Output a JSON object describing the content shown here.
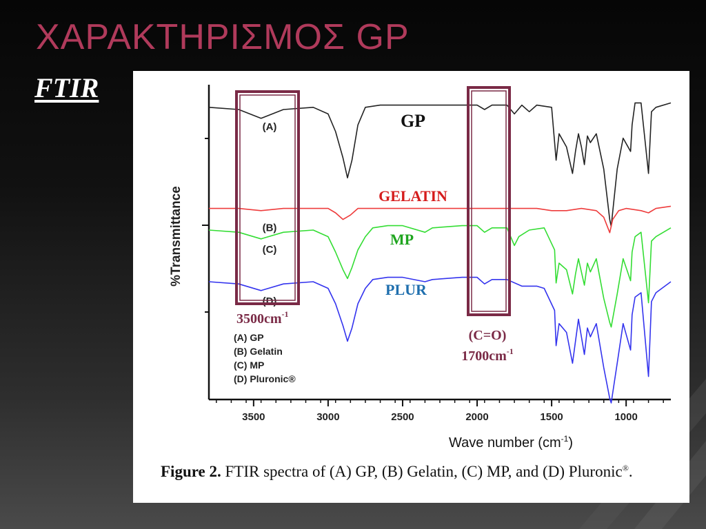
{
  "slide": {
    "title": "ΧΑΡΑΚΤΗΡΙΣΜΟΣ GP",
    "subtitle": "FTIR"
  },
  "figure": {
    "caption_bold": "Figure 2.",
    "caption_text": " FTIR spectra of (A) GP, (B) Gelatin, (C) MP, and (D) Pluronic",
    "caption_sup": "®",
    "caption_end": "."
  },
  "overlay": {
    "band_3500_label": "3500cm",
    "band_3500_sup": "-1",
    "band_1700_label_top": "(C=O)",
    "band_1700_label": "1700cm",
    "band_1700_sup": "-1",
    "box_color": "#7a2a46"
  },
  "chart_data": {
    "type": "line",
    "xlabel": "Wave number (cm",
    "xlabel_sup": "-1",
    "xlabel_end": ")",
    "ylabel": "%Transmittance",
    "xlim": [
      3800,
      700
    ],
    "x_ticks": [
      3500,
      3000,
      2500,
      2000,
      1500,
      1000
    ],
    "legend": [
      "(A) GP",
      "(B) Gelatin",
      "(C) MP",
      "(D) Pluronic®"
    ],
    "legend_position": "bottom-left",
    "series": [
      {
        "name": "GP",
        "tag": "(A)",
        "color": "#222222",
        "label_color": "#111111",
        "points": [
          [
            3800,
            96
          ],
          [
            3600,
            95
          ],
          [
            3450,
            91
          ],
          [
            3300,
            95
          ],
          [
            3100,
            96
          ],
          [
            3000,
            93
          ],
          [
            2950,
            85
          ],
          [
            2900,
            73
          ],
          [
            2870,
            64
          ],
          [
            2840,
            72
          ],
          [
            2800,
            88
          ],
          [
            2750,
            96
          ],
          [
            2650,
            97
          ],
          [
            2500,
            97
          ],
          [
            2300,
            97
          ],
          [
            2100,
            97
          ],
          [
            2000,
            97
          ],
          [
            1950,
            95
          ],
          [
            1900,
            97
          ],
          [
            1800,
            97
          ],
          [
            1750,
            93
          ],
          [
            1700,
            97
          ],
          [
            1650,
            94
          ],
          [
            1600,
            97
          ],
          [
            1500,
            96
          ],
          [
            1470,
            72
          ],
          [
            1450,
            84
          ],
          [
            1400,
            78
          ],
          [
            1360,
            66
          ],
          [
            1340,
            76
          ],
          [
            1320,
            84
          ],
          [
            1300,
            78
          ],
          [
            1280,
            70
          ],
          [
            1260,
            83
          ],
          [
            1240,
            80
          ],
          [
            1200,
            84
          ],
          [
            1150,
            68
          ],
          [
            1110,
            45
          ],
          [
            1100,
            42
          ],
          [
            1060,
            68
          ],
          [
            1020,
            82
          ],
          [
            970,
            76
          ],
          [
            960,
            88
          ],
          [
            940,
            98
          ],
          [
            900,
            98
          ],
          [
            850,
            66
          ],
          [
            830,
            94
          ],
          [
            800,
            96
          ],
          [
            700,
            98
          ]
        ]
      },
      {
        "name": "GELATIN",
        "tag": "(B)",
        "color": "#ee3b3b",
        "label_color": "#d51c1c",
        "points": [
          [
            3800,
            97
          ],
          [
            3600,
            97
          ],
          [
            3450,
            96
          ],
          [
            3300,
            97
          ],
          [
            3000,
            97
          ],
          [
            2950,
            95
          ],
          [
            2900,
            92
          ],
          [
            2850,
            94
          ],
          [
            2800,
            97
          ],
          [
            2600,
            97
          ],
          [
            2400,
            97
          ],
          [
            2300,
            97
          ],
          [
            2000,
            97
          ],
          [
            1800,
            97
          ],
          [
            1700,
            97
          ],
          [
            1600,
            97
          ],
          [
            1500,
            96
          ],
          [
            1400,
            96
          ],
          [
            1300,
            97
          ],
          [
            1200,
            96
          ],
          [
            1150,
            93
          ],
          [
            1110,
            86
          ],
          [
            1090,
            92
          ],
          [
            1050,
            96
          ],
          [
            1000,
            97
          ],
          [
            900,
            96
          ],
          [
            850,
            95
          ],
          [
            800,
            97
          ],
          [
            700,
            98
          ]
        ]
      },
      {
        "name": "MP",
        "tag": "(C)",
        "color": "#33dd33",
        "label_color": "#1fa51f",
        "points": [
          [
            3800,
            95
          ],
          [
            3600,
            94
          ],
          [
            3450,
            91
          ],
          [
            3300,
            94
          ],
          [
            3100,
            95
          ],
          [
            3000,
            92
          ],
          [
            2950,
            85
          ],
          [
            2900,
            77
          ],
          [
            2870,
            73
          ],
          [
            2840,
            78
          ],
          [
            2800,
            86
          ],
          [
            2750,
            92
          ],
          [
            2700,
            96
          ],
          [
            2600,
            97
          ],
          [
            2500,
            97
          ],
          [
            2350,
            94
          ],
          [
            2300,
            96
          ],
          [
            2100,
            97
          ],
          [
            2000,
            97
          ],
          [
            1950,
            94
          ],
          [
            1900,
            96
          ],
          [
            1800,
            96
          ],
          [
            1750,
            88
          ],
          [
            1720,
            92
          ],
          [
            1650,
            95
          ],
          [
            1550,
            96
          ],
          [
            1480,
            86
          ],
          [
            1470,
            71
          ],
          [
            1450,
            80
          ],
          [
            1400,
            77
          ],
          [
            1360,
            66
          ],
          [
            1340,
            75
          ],
          [
            1320,
            82
          ],
          [
            1300,
            76
          ],
          [
            1280,
            70
          ],
          [
            1260,
            80
          ],
          [
            1240,
            76
          ],
          [
            1200,
            82
          ],
          [
            1150,
            64
          ],
          [
            1110,
            53
          ],
          [
            1100,
            51
          ],
          [
            1060,
            66
          ],
          [
            1020,
            82
          ],
          [
            970,
            72
          ],
          [
            960,
            85
          ],
          [
            940,
            92
          ],
          [
            900,
            94
          ],
          [
            850,
            62
          ],
          [
            830,
            90
          ],
          [
            800,
            92
          ],
          [
            700,
            96
          ]
        ]
      },
      {
        "name": "PLUR",
        "tag": "(D)",
        "color": "#3333ee",
        "label_color": "#1f6fae",
        "points": [
          [
            3800,
            95
          ],
          [
            3600,
            94
          ],
          [
            3450,
            91
          ],
          [
            3300,
            94
          ],
          [
            3100,
            95
          ],
          [
            3000,
            92
          ],
          [
            2950,
            85
          ],
          [
            2900,
            75
          ],
          [
            2870,
            68
          ],
          [
            2840,
            74
          ],
          [
            2800,
            85
          ],
          [
            2750,
            92
          ],
          [
            2700,
            96
          ],
          [
            2600,
            97
          ],
          [
            2500,
            97
          ],
          [
            2350,
            95
          ],
          [
            2300,
            96
          ],
          [
            2100,
            97
          ],
          [
            2000,
            97
          ],
          [
            1950,
            94
          ],
          [
            1900,
            96
          ],
          [
            1800,
            96
          ],
          [
            1700,
            93
          ],
          [
            1600,
            93
          ],
          [
            1550,
            92
          ],
          [
            1480,
            82
          ],
          [
            1470,
            66
          ],
          [
            1450,
            76
          ],
          [
            1400,
            72
          ],
          [
            1360,
            58
          ],
          [
            1340,
            68
          ],
          [
            1320,
            78
          ],
          [
            1300,
            70
          ],
          [
            1280,
            62
          ],
          [
            1260,
            74
          ],
          [
            1240,
            70
          ],
          [
            1200,
            76
          ],
          [
            1150,
            56
          ],
          [
            1110,
            42
          ],
          [
            1100,
            40
          ],
          [
            1060,
            58
          ],
          [
            1020,
            76
          ],
          [
            970,
            64
          ],
          [
            960,
            80
          ],
          [
            940,
            88
          ],
          [
            900,
            90
          ],
          [
            850,
            52
          ],
          [
            830,
            86
          ],
          [
            800,
            90
          ],
          [
            700,
            95
          ]
        ]
      }
    ]
  }
}
